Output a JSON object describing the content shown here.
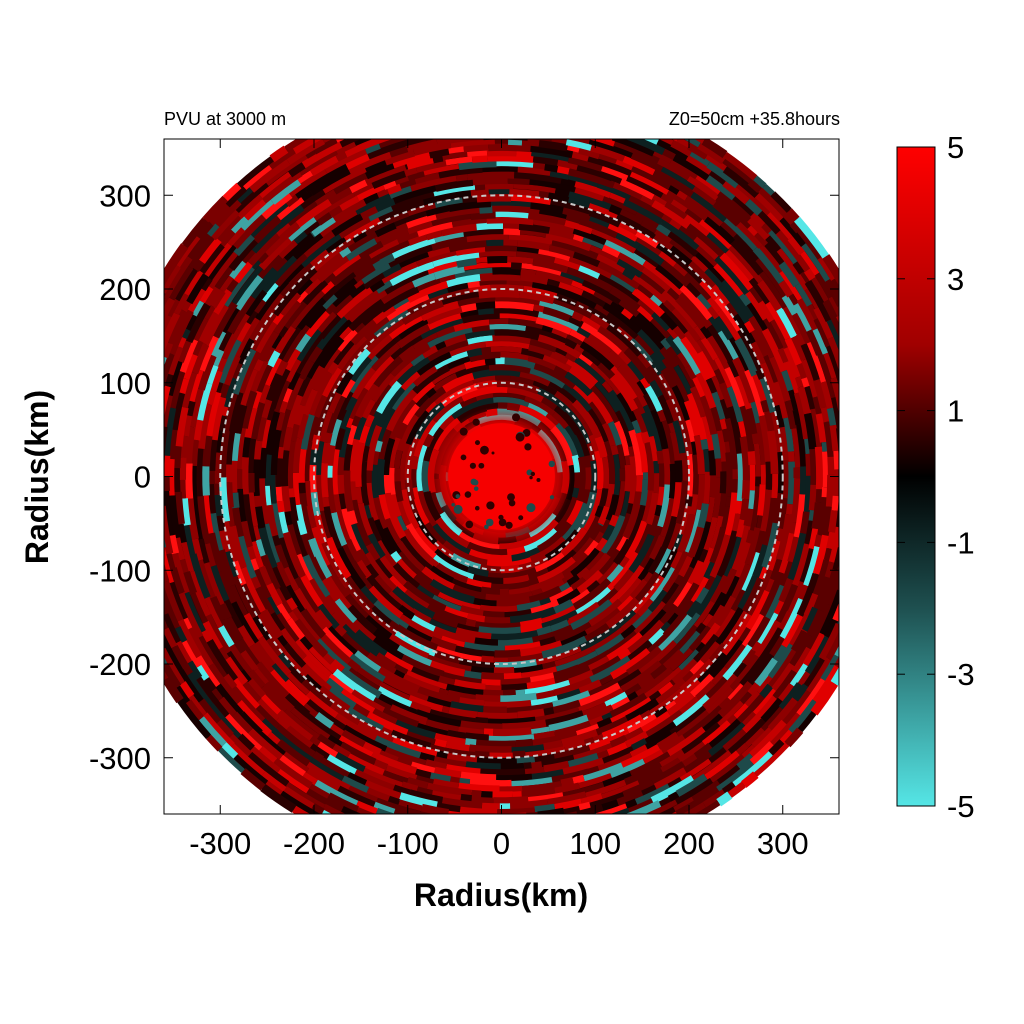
{
  "chart_data": {
    "type": "heatmap",
    "title_left": "PVU at  3000 m",
    "title_right": "Z0=50cm  +35.8hours",
    "xlabel": "Radius(km)",
    "ylabel": "Radius(km)",
    "xlim": [
      -360,
      360
    ],
    "ylim": [
      -360,
      360
    ],
    "x_ticks": [
      "-300",
      "-200",
      "-100",
      "0",
      "100",
      "200",
      "300"
    ],
    "x_tick_values": [
      -300,
      -200,
      -100,
      0,
      100,
      200,
      300
    ],
    "y_ticks": [
      "300",
      "200",
      "100",
      "0",
      "-100",
      "-200",
      "-300"
    ],
    "y_tick_values": [
      300,
      200,
      100,
      0,
      -100,
      -200,
      -300
    ],
    "data_extent_radius_km": 420,
    "range_rings_km": [
      100,
      200,
      300
    ],
    "colorbar": {
      "min": -5,
      "max": 5,
      "tick_labels": [
        "5",
        "3",
        "1",
        "-1",
        "-3",
        "-5"
      ],
      "tick_values": [
        5,
        3,
        1,
        -1,
        -3,
        -5
      ],
      "colors": {
        "high": "#ff0000",
        "mid": "#000000",
        "low": "#55e6e6"
      }
    },
    "grid": false,
    "field_description_pvu": {
      "core_radius_km": 60,
      "core_value": 5
    }
  }
}
